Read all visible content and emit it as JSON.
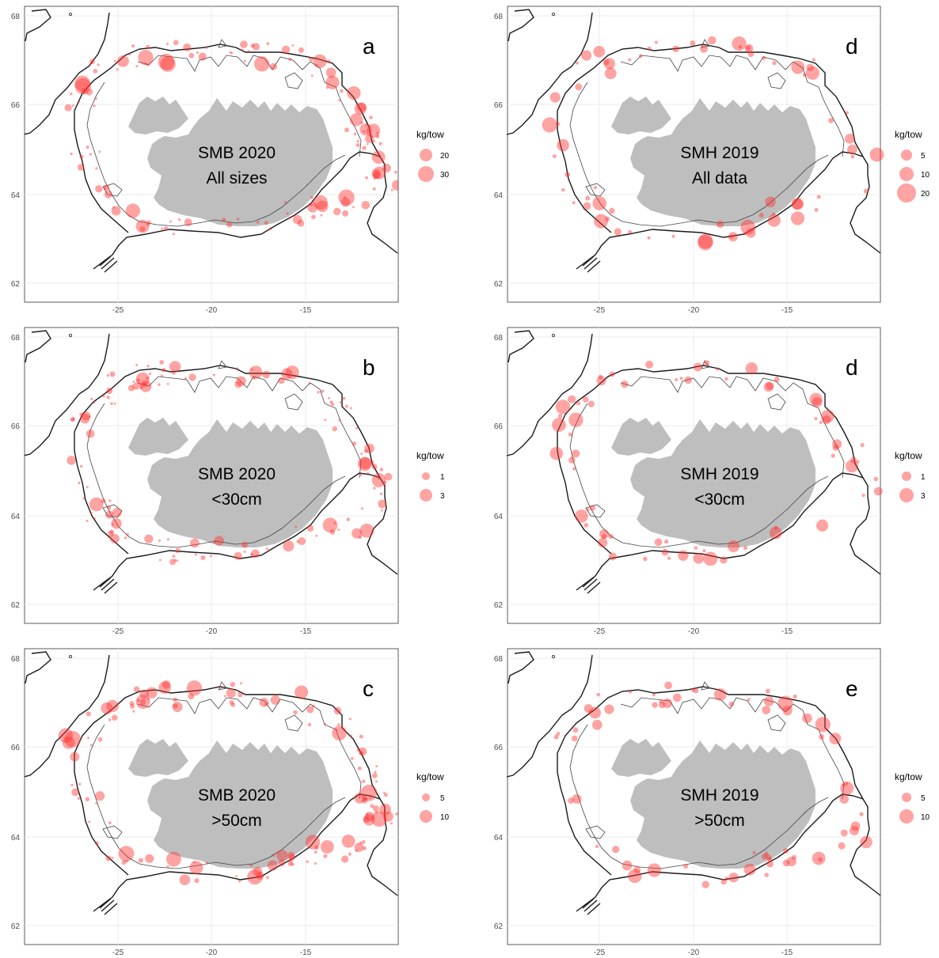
{
  "figure": {
    "x_ticks": [
      -25,
      -20,
      -15
    ],
    "y_ticks": [
      62,
      64,
      66,
      68
    ],
    "legend_title": "kg/tow",
    "bubble_color": "#ff3333",
    "land_color": "#bebebe",
    "contour_color": "#1a1a1a",
    "grid_color": "#ebebeb",
    "panels": [
      {
        "letter": "a",
        "survey": "SMB 2020",
        "subset": "All sizes",
        "legend": [
          "20",
          "30"
        ]
      },
      {
        "letter": "d",
        "survey": "SMH 2019",
        "subset": "All data",
        "legend": [
          "5",
          "10",
          "20"
        ]
      },
      {
        "letter": "b",
        "survey": "SMB 2020",
        "subset": "<30cm",
        "legend": [
          "1",
          "3"
        ]
      },
      {
        "letter": "d",
        "survey": "SMH 2019",
        "subset": "<30cm",
        "legend": [
          "1",
          "3"
        ]
      },
      {
        "letter": "c",
        "survey": "SMB 2020",
        "subset": ">50cm",
        "legend": [
          "5",
          "10"
        ]
      },
      {
        "letter": "e",
        "survey": "SMH 2019",
        "subset": ">50cm",
        "legend": [
          "5",
          "10"
        ]
      }
    ]
  }
}
